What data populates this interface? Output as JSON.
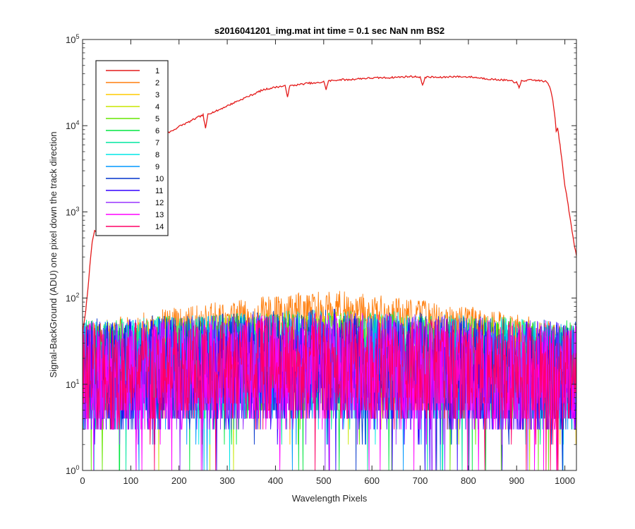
{
  "chart_data": {
    "type": "line",
    "title": "s2016041201_img.mat int time = 0.1 sec  NaN nm BS2",
    "xlabel": "Wavelength Pixels",
    "ylabel": "Signal-BackGround (ADU) one pixel down the track direction",
    "xlim": [
      0,
      1024
    ],
    "ylim": [
      1,
      100000
    ],
    "yscale": "log",
    "xticks": [
      "0",
      "100",
      "200",
      "300",
      "400",
      "500",
      "600",
      "700",
      "800",
      "900",
      "1000"
    ],
    "yticks": [
      {
        "base": "10",
        "exp": "0"
      },
      {
        "base": "10",
        "exp": "1"
      },
      {
        "base": "10",
        "exp": "2"
      },
      {
        "base": "10",
        "exp": "3"
      },
      {
        "base": "10",
        "exp": "4"
      },
      {
        "base": "10",
        "exp": "5"
      }
    ],
    "grid": false,
    "legend_position": "top-left",
    "series": [
      {
        "name": "1",
        "color": "#e41a1a",
        "kind": "profile",
        "points": [
          [
            0,
            40
          ],
          [
            5,
            60
          ],
          [
            10,
            110
          ],
          [
            15,
            230
          ],
          [
            20,
            450
          ],
          [
            25,
            600
          ],
          [
            30,
            570
          ],
          [
            40,
            640
          ],
          [
            50,
            800
          ],
          [
            60,
            1600
          ],
          [
            70,
            3000
          ],
          [
            80,
            4600
          ],
          [
            90,
            5300
          ],
          [
            100,
            6100
          ],
          [
            110,
            6500
          ],
          [
            120,
            6600
          ],
          [
            130,
            6900
          ],
          [
            140,
            7100
          ],
          [
            150,
            7500
          ],
          [
            160,
            7800
          ],
          [
            170,
            8000
          ],
          [
            180,
            8400
          ],
          [
            190,
            9000
          ],
          [
            200,
            9800
          ],
          [
            210,
            10400
          ],
          [
            220,
            11000
          ],
          [
            230,
            11800
          ],
          [
            240,
            12600
          ],
          [
            250,
            13300
          ],
          [
            255,
            9200
          ],
          [
            260,
            13800
          ],
          [
            270,
            14300
          ],
          [
            280,
            15000
          ],
          [
            290,
            16000
          ],
          [
            300,
            17000
          ],
          [
            310,
            18000
          ],
          [
            320,
            19200
          ],
          [
            330,
            20200
          ],
          [
            340,
            21500
          ],
          [
            350,
            22600
          ],
          [
            360,
            24000
          ],
          [
            370,
            25500
          ],
          [
            380,
            26500
          ],
          [
            390,
            27200
          ],
          [
            400,
            28000
          ],
          [
            410,
            28500
          ],
          [
            420,
            28800
          ],
          [
            425,
            22000
          ],
          [
            430,
            29000
          ],
          [
            440,
            29500
          ],
          [
            450,
            30000
          ],
          [
            460,
            30700
          ],
          [
            470,
            31200
          ],
          [
            480,
            31000
          ],
          [
            490,
            31500
          ],
          [
            500,
            32500
          ],
          [
            505,
            26500
          ],
          [
            510,
            33000
          ],
          [
            520,
            33500
          ],
          [
            530,
            34000
          ],
          [
            540,
            34300
          ],
          [
            550,
            34000
          ],
          [
            560,
            34500
          ],
          [
            570,
            35000
          ],
          [
            580,
            35300
          ],
          [
            590,
            35500
          ],
          [
            600,
            35700
          ],
          [
            610,
            35900
          ],
          [
            620,
            36000
          ],
          [
            630,
            36000
          ],
          [
            640,
            36200
          ],
          [
            650,
            36500
          ],
          [
            660,
            36700
          ],
          [
            670,
            37000
          ],
          [
            680,
            37200
          ],
          [
            690,
            37000
          ],
          [
            700,
            36800
          ],
          [
            705,
            29000
          ],
          [
            710,
            36500
          ],
          [
            720,
            36700
          ],
          [
            730,
            36500
          ],
          [
            740,
            36200
          ],
          [
            750,
            36500
          ],
          [
            760,
            37000
          ],
          [
            770,
            37200
          ],
          [
            780,
            37000
          ],
          [
            790,
            36800
          ],
          [
            800,
            37000
          ],
          [
            810,
            36500
          ],
          [
            820,
            36000
          ],
          [
            830,
            35500
          ],
          [
            840,
            35000
          ],
          [
            850,
            34500
          ],
          [
            860,
            34200
          ],
          [
            870,
            34000
          ],
          [
            880,
            33500
          ],
          [
            890,
            33000
          ],
          [
            895,
            31000
          ],
          [
            900,
            33000
          ],
          [
            905,
            27000
          ],
          [
            910,
            33000
          ],
          [
            920,
            33500
          ],
          [
            930,
            33800
          ],
          [
            940,
            33600
          ],
          [
            950,
            33200
          ],
          [
            960,
            32500
          ],
          [
            965,
            31000
          ],
          [
            970,
            27000
          ],
          [
            975,
            20000
          ],
          [
            980,
            12000
          ],
          [
            982,
            8500
          ],
          [
            985,
            9500
          ],
          [
            990,
            6000
          ],
          [
            995,
            3500
          ],
          [
            1000,
            2000
          ],
          [
            1005,
            1400
          ],
          [
            1010,
            900
          ],
          [
            1015,
            600
          ],
          [
            1020,
            400
          ],
          [
            1024,
            310
          ]
        ]
      },
      {
        "name": "2",
        "color": "#ff7f0e",
        "kind": "noise",
        "center": [
          0,
          30,
          512,
          75,
          1024,
          28
        ],
        "spread": 0.22
      },
      {
        "name": "3",
        "color": "#ffcc00",
        "kind": "noise",
        "center": [
          0,
          18,
          512,
          25,
          1024,
          16
        ],
        "spread": 0.45
      },
      {
        "name": "4",
        "color": "#c8e600",
        "kind": "noise",
        "center": [
          0,
          16,
          512,
          22,
          1024,
          15
        ],
        "spread": 0.5
      },
      {
        "name": "5",
        "color": "#66e600",
        "kind": "noise",
        "center": [
          0,
          15,
          512,
          20,
          1024,
          14
        ],
        "spread": 0.55
      },
      {
        "name": "6",
        "color": "#00e640",
        "kind": "noise",
        "center": [
          0,
          14,
          512,
          19,
          1024,
          14
        ],
        "spread": 0.6
      },
      {
        "name": "7",
        "color": "#00e6a0",
        "kind": "noise",
        "center": [
          0,
          14,
          512,
          18,
          1024,
          13
        ],
        "spread": 0.6
      },
      {
        "name": "8",
        "color": "#00e6e6",
        "kind": "noise",
        "center": [
          0,
          13,
          512,
          18,
          1024,
          13
        ],
        "spread": 0.62
      },
      {
        "name": "9",
        "color": "#0099ff",
        "kind": "noise",
        "center": [
          0,
          13,
          512,
          17,
          1024,
          12
        ],
        "spread": 0.62
      },
      {
        "name": "10",
        "color": "#0033cc",
        "kind": "noise",
        "center": [
          0,
          13,
          512,
          17,
          1024,
          12
        ],
        "spread": 0.65
      },
      {
        "name": "11",
        "color": "#3300ff",
        "kind": "noise",
        "center": [
          0,
          12,
          512,
          16,
          1024,
          12
        ],
        "spread": 0.65
      },
      {
        "name": "12",
        "color": "#9933ff",
        "kind": "noise",
        "center": [
          0,
          12,
          512,
          16,
          1024,
          12
        ],
        "spread": 0.65
      },
      {
        "name": "13",
        "color": "#ff00ff",
        "kind": "noise",
        "center": [
          0,
          12,
          512,
          16,
          1024,
          12
        ],
        "spread": 0.65
      },
      {
        "name": "14",
        "color": "#ff0066",
        "kind": "noise",
        "center": [
          0,
          12,
          512,
          17,
          1024,
          12
        ],
        "spread": 0.6
      }
    ]
  }
}
